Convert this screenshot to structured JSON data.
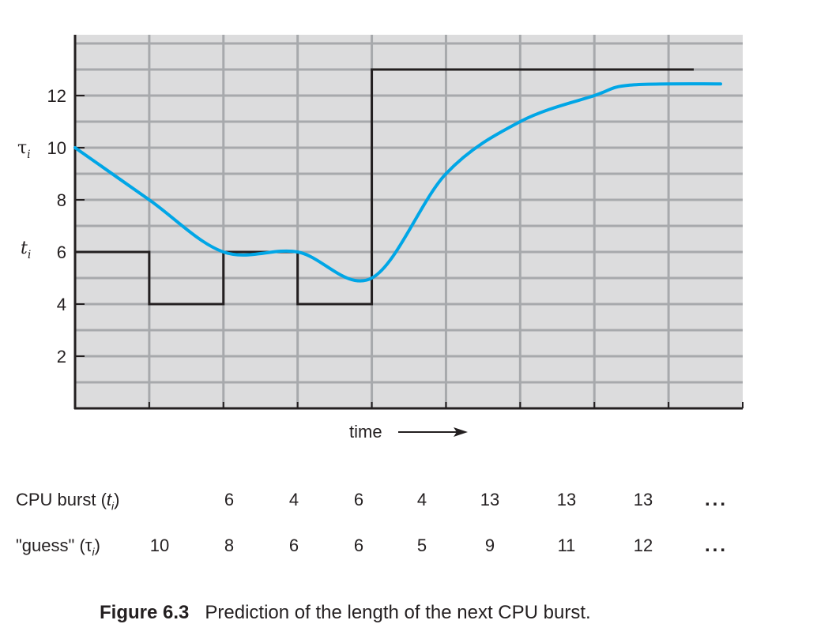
{
  "chart_data": {
    "type": "line",
    "xlabel": "time",
    "ylim": [
      0,
      15
    ],
    "y_ticks": [
      2,
      4,
      6,
      8,
      10,
      12
    ],
    "x_divisions": 9,
    "grid": true,
    "y_axis_labels": {
      "tau": "τ",
      "tau_sub": "i",
      "t": "t",
      "t_sub": "i"
    },
    "series": [
      {
        "name": "CPU burst (ti)",
        "style": "step",
        "values": [
          6,
          4,
          6,
          4,
          13,
          13,
          13,
          13
        ]
      },
      {
        "name": "\"guess\" (τi)",
        "style": "smooth",
        "values": [
          10,
          8,
          6,
          6,
          5,
          9,
          11,
          12
        ]
      }
    ],
    "colors": {
      "burst": "#231f20",
      "guess": "#00a6e6",
      "grid": "#a7a9ac",
      "background": "#dcdcdd"
    }
  },
  "table": {
    "burst_label_prefix": "CPU burst (",
    "burst_label_var": "t",
    "burst_label_sub": "i",
    "burst_label_suffix": ")",
    "guess_label_prefix": "\"guess\" (",
    "guess_label_var": "τ",
    "guess_label_sub": "i",
    "guess_label_suffix": ")",
    "burst_values": [
      "6",
      "4",
      "6",
      "4",
      "13",
      "13",
      "13"
    ],
    "guess_values": [
      "10",
      "8",
      "6",
      "6",
      "5",
      "9",
      "11",
      "12"
    ],
    "ellipsis": "..."
  },
  "caption": {
    "label": "Figure 6.3",
    "text": "Prediction of the length of the next CPU burst."
  }
}
